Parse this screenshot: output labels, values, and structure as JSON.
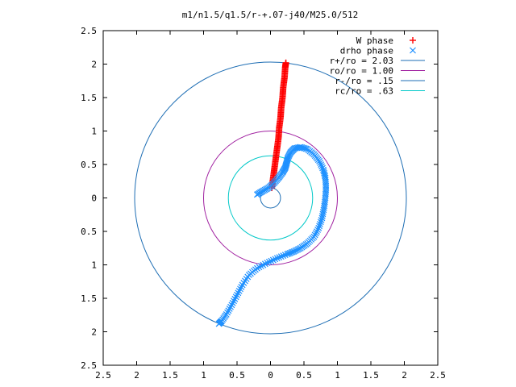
{
  "chart_data": {
    "type": "scatter",
    "title": "m1/n1.5/q1.5/r-+.07-j40/M25.0/512",
    "xlim": [
      -2.5,
      2.5
    ],
    "ylim": [
      -2.5,
      2.5
    ],
    "x_ticks": [
      -2.5,
      -2,
      -1.5,
      -1,
      -0.5,
      0,
      0.5,
      1,
      1.5,
      2,
      2.5
    ],
    "y_ticks": [
      -2.5,
      -2,
      -1.5,
      -1,
      -0.5,
      0,
      0.5,
      1,
      1.5,
      2,
      2.5
    ],
    "x_tick_labels": [
      "2.5",
      "2",
      "1.5",
      "1",
      "0.5",
      "0",
      "0.5",
      "1",
      "1.5",
      "2",
      "2.5"
    ],
    "y_tick_labels": [
      "2.5",
      "2",
      "1.5",
      "1",
      "0.5",
      "0",
      "0.5",
      "1",
      "1.5",
      "2",
      "2.5"
    ],
    "grid": false,
    "legend_position": "top-right",
    "series": [
      {
        "name": "W phase",
        "kind": "points",
        "marker": "plus",
        "color": "#ff0000",
        "points": [
          [
            0.02,
            0.15
          ],
          [
            0.04,
            0.3
          ],
          [
            0.06,
            0.45
          ],
          [
            0.08,
            0.6
          ],
          [
            0.1,
            0.75
          ],
          [
            0.12,
            0.9
          ],
          [
            0.13,
            1.05
          ],
          [
            0.15,
            1.2
          ],
          [
            0.16,
            1.35
          ],
          [
            0.18,
            1.5
          ],
          [
            0.19,
            1.65
          ],
          [
            0.21,
            1.8
          ],
          [
            0.22,
            1.95
          ],
          [
            0.23,
            2.02
          ]
        ]
      },
      {
        "name": "drho phase",
        "kind": "points",
        "marker": "cross",
        "color": "#1e90ff",
        "points": [
          [
            -0.2,
            0.05
          ],
          [
            -0.12,
            0.1
          ],
          [
            -0.03,
            0.15
          ],
          [
            0.05,
            0.22
          ],
          [
            0.12,
            0.3
          ],
          [
            0.18,
            0.38
          ],
          [
            0.22,
            0.45
          ],
          [
            0.24,
            0.52
          ],
          [
            0.26,
            0.6
          ],
          [
            0.3,
            0.68
          ],
          [
            0.36,
            0.74
          ],
          [
            0.45,
            0.76
          ],
          [
            0.55,
            0.73
          ],
          [
            0.65,
            0.65
          ],
          [
            0.73,
            0.55
          ],
          [
            0.79,
            0.42
          ],
          [
            0.82,
            0.3
          ],
          [
            0.83,
            0.15
          ],
          [
            0.82,
            0.0
          ],
          [
            0.8,
            -0.15
          ],
          [
            0.77,
            -0.3
          ],
          [
            0.72,
            -0.45
          ],
          [
            0.65,
            -0.58
          ],
          [
            0.55,
            -0.68
          ],
          [
            0.45,
            -0.75
          ],
          [
            0.35,
            -0.8
          ],
          [
            0.25,
            -0.84
          ],
          [
            0.1,
            -0.9
          ],
          [
            -0.05,
            -0.97
          ],
          [
            -0.2,
            -1.05
          ],
          [
            -0.32,
            -1.15
          ],
          [
            -0.42,
            -1.3
          ],
          [
            -0.5,
            -1.45
          ],
          [
            -0.58,
            -1.6
          ],
          [
            -0.66,
            -1.74
          ],
          [
            -0.73,
            -1.84
          ],
          [
            -0.77,
            -1.88
          ]
        ]
      },
      {
        "name": "r+/ro = 2.03",
        "kind": "circle",
        "radius": 2.03,
        "color": "#1e6eb4"
      },
      {
        "name": "ro/ro = 1.00",
        "kind": "circle",
        "radius": 1.0,
        "color": "#a020a0"
      },
      {
        "name": "r-/ro = .15",
        "kind": "circle",
        "radius": 0.15,
        "color": "#1e6eb4"
      },
      {
        "name": "rc/ro = .63",
        "kind": "circle",
        "radius": 0.63,
        "color": "#00c8c8"
      }
    ]
  }
}
